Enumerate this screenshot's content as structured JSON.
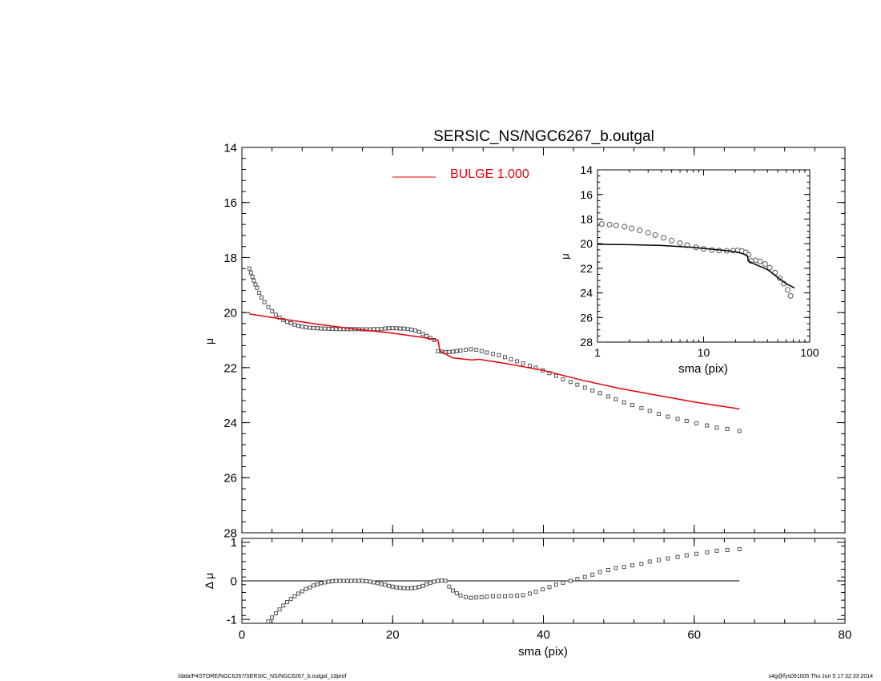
{
  "chart_data": [
    {
      "id": "main",
      "type": "scatter",
      "title": "SERSIC_NS/NGC6267_b.outgal",
      "xlabel": "",
      "ylabel": "μ",
      "xlim": [
        0,
        80
      ],
      "ylim": [
        28,
        14
      ],
      "y_inverted": true,
      "xticks": [
        0,
        20,
        40,
        60,
        80
      ],
      "xtick_labels_shown": false,
      "yticks": [
        14,
        16,
        18,
        20,
        22,
        24,
        26,
        28
      ],
      "legend": {
        "entries": [
          {
            "label": "BULGE  1.000",
            "color": "#e8000b"
          }
        ],
        "placement": "top-center"
      },
      "series": [
        {
          "name": "",
          "style": "open-squares",
          "color": "#555555",
          "x": [
            1.0,
            1.2,
            1.4,
            1.6,
            1.8,
            2.0,
            2.3,
            2.6,
            3.0,
            3.5,
            4.0,
            4.5,
            5.0,
            5.5,
            6.0,
            6.5,
            7.0,
            7.5,
            8.0,
            8.5,
            9.0,
            9.5,
            10.0,
            10.5,
            11.0,
            11.5,
            12.0,
            12.5,
            13.0,
            13.5,
            14.0,
            14.5,
            15.0,
            15.5,
            16.0,
            16.5,
            17.0,
            17.5,
            18.0,
            18.5,
            19.0,
            19.5,
            20.0,
            20.5,
            21.0,
            21.5,
            22.0,
            22.5,
            23.0,
            23.5,
            24.0,
            24.5,
            25.0,
            25.5,
            26.0,
            26.5,
            27.0,
            27.5,
            28.0,
            28.5,
            29.0,
            29.7,
            30.4,
            31.1,
            31.8,
            32.5,
            33.3,
            34.1,
            34.9,
            35.7,
            36.5,
            37.3,
            38.2,
            39.0,
            39.9,
            40.8,
            41.7,
            42.6,
            43.6,
            44.5,
            45.5,
            46.5,
            47.5,
            48.6,
            49.6,
            50.7,
            51.8,
            53.0,
            54.1,
            55.3,
            56.5,
            57.8,
            59.0,
            60.3,
            61.7,
            63.0,
            64.4,
            66.0
          ],
          "y": [
            18.4,
            18.55,
            18.7,
            18.84,
            18.98,
            19.1,
            19.28,
            19.45,
            19.62,
            19.8,
            19.95,
            20.08,
            20.18,
            20.27,
            20.33,
            20.39,
            20.44,
            20.48,
            20.51,
            20.53,
            20.55,
            20.56,
            20.57,
            20.58,
            20.58,
            20.59,
            20.59,
            20.6,
            20.6,
            20.6,
            20.6,
            20.6,
            20.6,
            20.6,
            20.61,
            20.61,
            20.61,
            20.6,
            20.6,
            20.6,
            20.58,
            20.57,
            20.57,
            20.57,
            20.58,
            20.58,
            20.6,
            20.62,
            20.65,
            20.7,
            20.78,
            20.85,
            20.92,
            21.0,
            21.4,
            21.42,
            21.44,
            21.43,
            21.42,
            21.4,
            21.38,
            21.35,
            21.33,
            21.35,
            21.4,
            21.45,
            21.5,
            21.55,
            21.62,
            21.7,
            21.77,
            21.85,
            21.93,
            22.0,
            22.1,
            22.2,
            22.3,
            22.42,
            22.52,
            22.62,
            22.73,
            22.83,
            22.93,
            23.05,
            23.15,
            23.26,
            23.36,
            23.47,
            23.57,
            23.68,
            23.78,
            23.86,
            23.94,
            24.02,
            24.1,
            24.18,
            24.23,
            24.3
          ]
        },
        {
          "name": "BULGE  1.000",
          "style": "line",
          "color": "#e8000b",
          "x": [
            1.0,
            5,
            10,
            15,
            20,
            24,
            26.0,
            26.3,
            28.0,
            30.5,
            31.5,
            35,
            40,
            45,
            50,
            55,
            60,
            66
          ],
          "y": [
            20.05,
            20.22,
            20.42,
            20.6,
            20.75,
            20.9,
            21.0,
            21.4,
            21.65,
            21.72,
            21.7,
            21.85,
            22.1,
            22.45,
            22.75,
            23.0,
            23.25,
            23.5
          ]
        }
      ]
    },
    {
      "id": "residual",
      "type": "scatter",
      "title": "",
      "xlabel": "sma (pix)",
      "ylabel": "Δ μ",
      "xlim": [
        0,
        80
      ],
      "ylim": [
        -1.1,
        1.1
      ],
      "xticks": [
        0,
        20,
        40,
        60,
        80
      ],
      "yticks": [
        -1,
        0,
        1
      ],
      "zero_line": {
        "x_start": 0,
        "x_end": 66,
        "y": 0
      },
      "series": [
        {
          "name": "",
          "style": "open-squares",
          "color": "#555555",
          "x": [
            3.5,
            4.0,
            4.5,
            5.0,
            5.5,
            6.0,
            6.5,
            7.0,
            7.5,
            8.0,
            8.5,
            9.0,
            9.5,
            10.0,
            10.5,
            11.0,
            11.5,
            12.0,
            12.5,
            13.0,
            13.5,
            14.0,
            14.5,
            15.0,
            15.5,
            16.0,
            16.5,
            17.0,
            17.5,
            18.0,
            18.5,
            19.0,
            19.5,
            20.0,
            20.5,
            21.0,
            21.5,
            22.0,
            22.5,
            23.0,
            23.5,
            24.0,
            24.5,
            25.0,
            25.5,
            26.0,
            26.5,
            27.0,
            27.5,
            28.0,
            28.5,
            29.0,
            29.7,
            30.4,
            31.1,
            31.8,
            32.5,
            33.3,
            34.1,
            34.9,
            35.7,
            36.5,
            37.3,
            38.2,
            39.0,
            39.9,
            40.8,
            41.7,
            42.6,
            43.6,
            44.5,
            45.5,
            46.5,
            47.5,
            48.6,
            49.6,
            50.7,
            51.8,
            53.0,
            54.1,
            55.3,
            56.5,
            57.8,
            59.0,
            60.3,
            61.7,
            63.0,
            64.4,
            66.0
          ],
          "y": [
            -1.05,
            -0.95,
            -0.84,
            -0.74,
            -0.64,
            -0.55,
            -0.47,
            -0.4,
            -0.33,
            -0.27,
            -0.21,
            -0.17,
            -0.12,
            -0.09,
            -0.06,
            -0.04,
            -0.02,
            -0.01,
            0.0,
            0.0,
            0.0,
            0.0,
            0.0,
            0.0,
            0.0,
            0.0,
            -0.01,
            -0.02,
            -0.04,
            -0.06,
            -0.08,
            -0.1,
            -0.13,
            -0.15,
            -0.17,
            -0.18,
            -0.19,
            -0.19,
            -0.19,
            -0.18,
            -0.16,
            -0.13,
            -0.09,
            -0.05,
            -0.02,
            0.0,
            0.01,
            0.0,
            -0.15,
            -0.25,
            -0.32,
            -0.38,
            -0.42,
            -0.44,
            -0.43,
            -0.42,
            -0.41,
            -0.4,
            -0.4,
            -0.4,
            -0.39,
            -0.38,
            -0.37,
            -0.33,
            -0.28,
            -0.22,
            -0.16,
            -0.1,
            -0.05,
            0.0,
            0.05,
            0.1,
            0.16,
            0.23,
            0.28,
            0.33,
            0.36,
            0.4,
            0.44,
            0.5,
            0.54,
            0.58,
            0.62,
            0.66,
            0.7,
            0.74,
            0.78,
            0.8,
            0.82
          ]
        }
      ]
    },
    {
      "id": "inset",
      "type": "scatter",
      "title": "",
      "xlabel": "sma (pix)",
      "ylabel": "μ",
      "x_scale": "log",
      "xlim": [
        1,
        100
      ],
      "ylim": [
        28,
        14
      ],
      "y_inverted": true,
      "xticks": [
        1,
        10,
        100
      ],
      "yticks": [
        14,
        16,
        18,
        20,
        22,
        24,
        26,
        28
      ],
      "series": [
        {
          "name": "",
          "style": "open-circles",
          "color": "#555555",
          "x": [
            1.1,
            1.3,
            1.5,
            1.8,
            2.1,
            2.5,
            3.0,
            3.5,
            4.2,
            5.0,
            6.0,
            7.0,
            8.5,
            10.0,
            12.0,
            14.0,
            16.5,
            19.0,
            21.0,
            23.0,
            25.0,
            26.5,
            28.0,
            31.0,
            34.0,
            38.0,
            42.0,
            47.0,
            52.0,
            57.0,
            62.0,
            66.0
          ],
          "y": [
            18.4,
            18.45,
            18.52,
            18.62,
            18.75,
            18.92,
            19.1,
            19.3,
            19.52,
            19.75,
            19.95,
            20.12,
            20.3,
            20.42,
            20.52,
            20.56,
            20.58,
            20.57,
            20.55,
            20.6,
            20.7,
            20.9,
            21.4,
            21.35,
            21.45,
            21.65,
            21.95,
            22.35,
            22.8,
            23.25,
            23.75,
            24.25
          ]
        },
        {
          "name": "",
          "style": "line",
          "color": "#000000",
          "x": [
            1.0,
            2,
            4,
            8,
            12,
            16,
            20,
            24,
            26.0,
            26.3,
            30,
            40,
            50,
            60,
            72
          ],
          "y": [
            20.05,
            20.08,
            20.15,
            20.3,
            20.45,
            20.55,
            20.65,
            20.85,
            21.0,
            21.4,
            21.65,
            22.1,
            22.75,
            23.25,
            23.6
          ]
        }
      ]
    }
  ],
  "footer": {
    "left": "/data/P4STORE/NGC6267/SERSIC_NS/NGC6267_b.outgal_1dprof",
    "right": "s4g@fys091005  Thu Jun  5 17:32:33 2014"
  }
}
